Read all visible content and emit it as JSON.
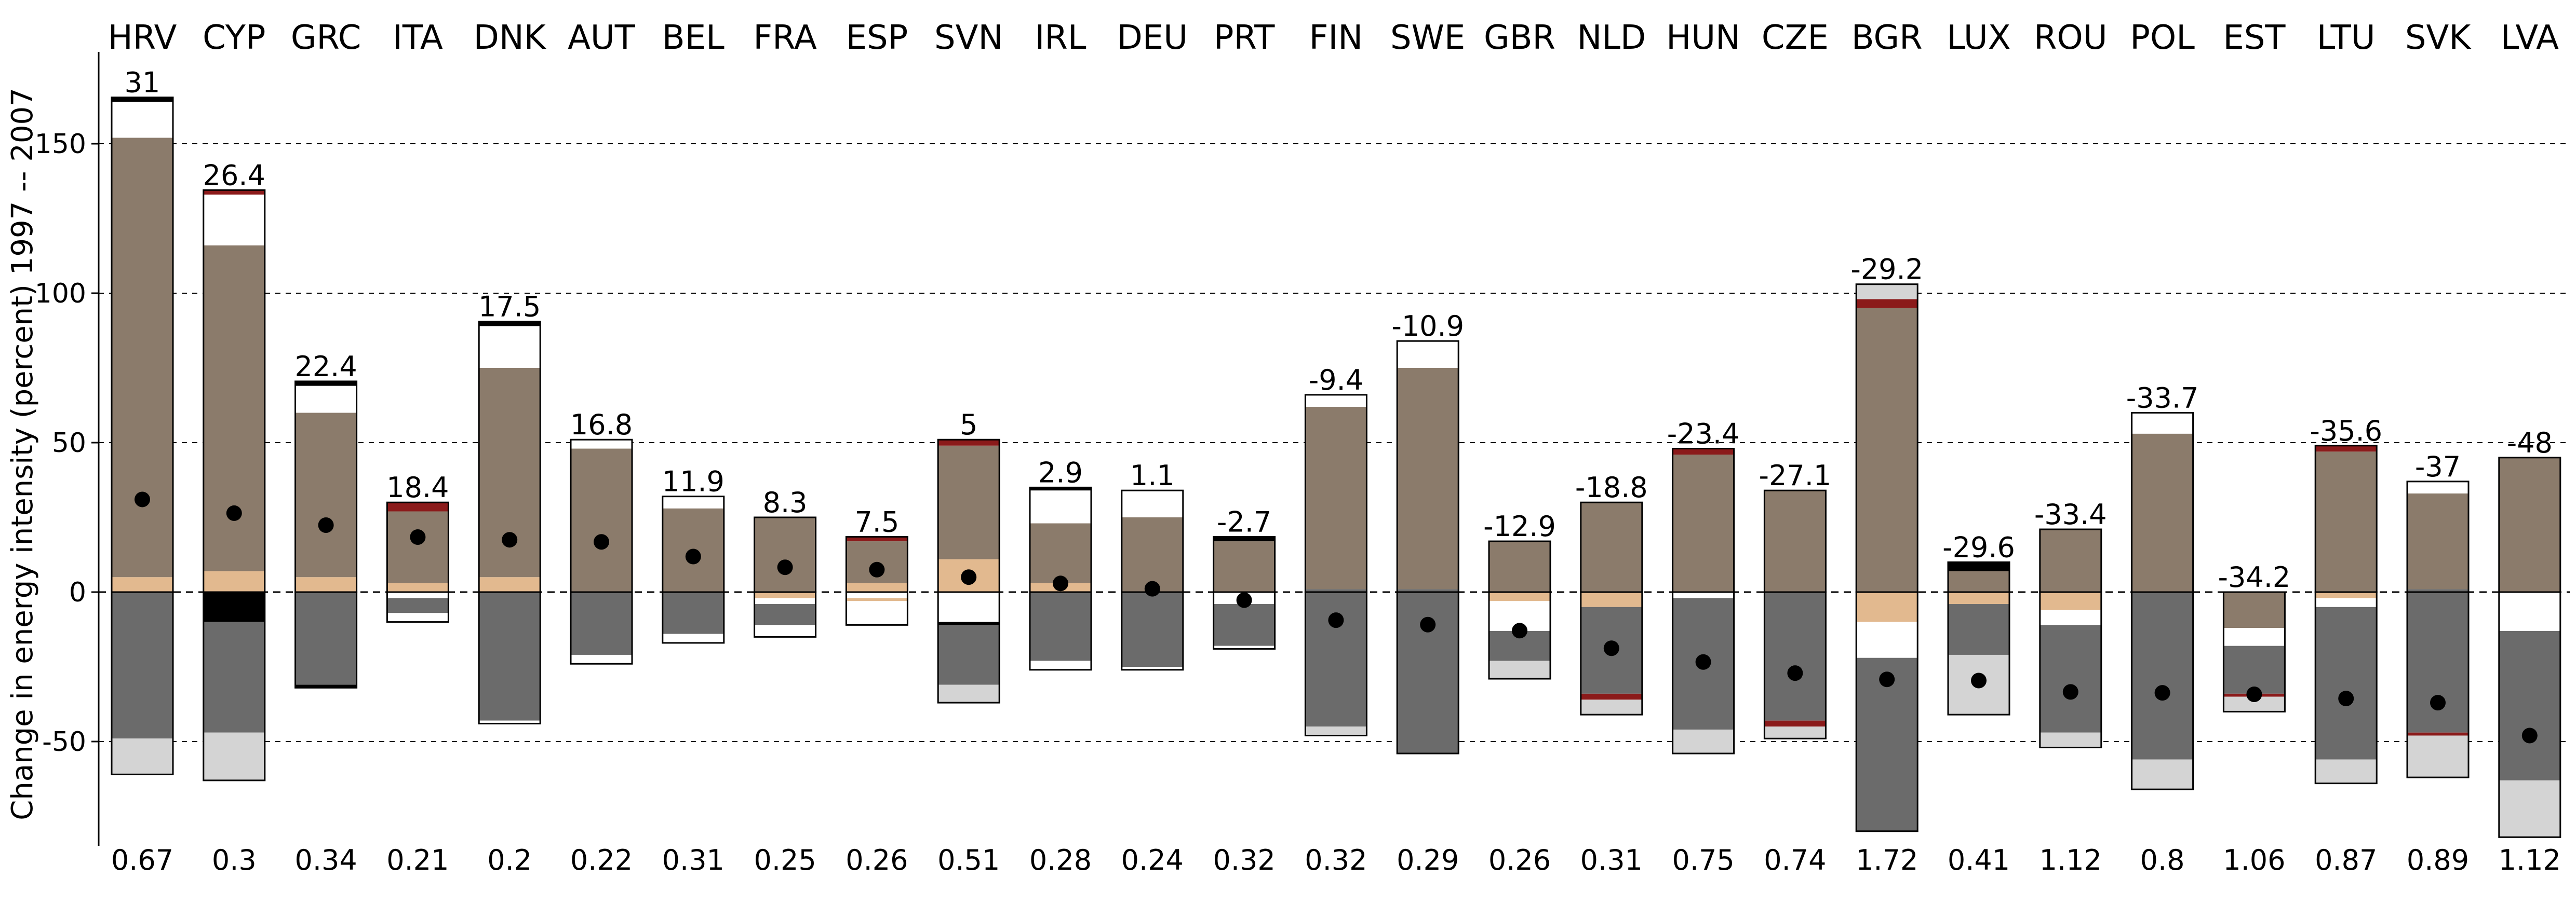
{
  "chart_data": {
    "type": "bar",
    "subtype": "stacked-decomposition-with-total-marker",
    "ylabel": "Change in energy intensity (percent) 1997 -- 2007",
    "ylim": [
      -82,
      168
    ],
    "yticks": [
      -50,
      0,
      50,
      100,
      150
    ],
    "grid": true,
    "colors": {
      "taupe": "#8b7b6b",
      "tan": "#e2b98f",
      "dark_red": "#8b1a1a",
      "black": "#000000",
      "white": "#ffffff",
      "dark_gray": "#6b6b6b",
      "light_gray": "#d4d4d4"
    },
    "countries": [
      {
        "code": "HRV",
        "total": 31,
        "total_label": "31",
        "intensity": "0.67",
        "pos": [
          {
            "c": "tan",
            "h": 5
          },
          {
            "c": "taupe",
            "h": 147
          },
          {
            "c": "white",
            "h": 12
          },
          {
            "c": "black",
            "h": 1.5
          }
        ],
        "neg": [
          {
            "c": "dark_gray",
            "h": 49
          },
          {
            "c": "light_gray",
            "h": 12
          }
        ]
      },
      {
        "code": "CYP",
        "total": 26.4,
        "total_label": "26.4",
        "intensity": "0.3",
        "pos": [
          {
            "c": "tan",
            "h": 7
          },
          {
            "c": "taupe",
            "h": 109
          },
          {
            "c": "white",
            "h": 17
          },
          {
            "c": "dark_red",
            "h": 1.5
          }
        ],
        "neg": [
          {
            "c": "black",
            "h": 10
          },
          {
            "c": "dark_gray",
            "h": 37
          },
          {
            "c": "light_gray",
            "h": 16
          }
        ]
      },
      {
        "code": "GRC",
        "total": 22.4,
        "total_label": "22.4",
        "intensity": "0.34",
        "pos": [
          {
            "c": "tan",
            "h": 5
          },
          {
            "c": "taupe",
            "h": 55
          },
          {
            "c": "white",
            "h": 9
          },
          {
            "c": "black",
            "h": 1.5
          }
        ],
        "neg": [
          {
            "c": "dark_gray",
            "h": 31
          },
          {
            "c": "black",
            "h": 1
          }
        ]
      },
      {
        "code": "ITA",
        "total": 18.4,
        "total_label": "18.4",
        "intensity": "0.21",
        "pos": [
          {
            "c": "tan",
            "h": 3
          },
          {
            "c": "taupe",
            "h": 24
          },
          {
            "c": "dark_red",
            "h": 3
          }
        ],
        "neg": [
          {
            "c": "white",
            "h": 2
          },
          {
            "c": "dark_gray",
            "h": 5
          },
          {
            "c": "white",
            "h": 3
          }
        ]
      },
      {
        "code": "DNK",
        "total": 17.5,
        "total_label": "17.5",
        "intensity": "0.2",
        "pos": [
          {
            "c": "tan",
            "h": 5
          },
          {
            "c": "taupe",
            "h": 70
          },
          {
            "c": "white",
            "h": 14
          },
          {
            "c": "black",
            "h": 1.5
          }
        ],
        "neg": [
          {
            "c": "dark_gray",
            "h": 43
          },
          {
            "c": "white",
            "h": 1
          }
        ]
      },
      {
        "code": "AUT",
        "total": 16.8,
        "total_label": "16.8",
        "intensity": "0.22",
        "pos": [
          {
            "c": "taupe",
            "h": 48
          },
          {
            "c": "white",
            "h": 3
          }
        ],
        "neg": [
          {
            "c": "dark_gray",
            "h": 21
          },
          {
            "c": "white",
            "h": 3
          }
        ]
      },
      {
        "code": "BEL",
        "total": 11.9,
        "total_label": "11.9",
        "intensity": "0.31",
        "pos": [
          {
            "c": "taupe",
            "h": 28
          },
          {
            "c": "white",
            "h": 4
          }
        ],
        "neg": [
          {
            "c": "dark_gray",
            "h": 14
          },
          {
            "c": "white",
            "h": 3
          }
        ]
      },
      {
        "code": "FRA",
        "total": 8.3,
        "total_label": "8.3",
        "intensity": "0.25",
        "pos": [
          {
            "c": "taupe",
            "h": 25
          }
        ],
        "neg": [
          {
            "c": "tan",
            "h": 2
          },
          {
            "c": "white",
            "h": 2
          },
          {
            "c": "dark_gray",
            "h": 7
          },
          {
            "c": "white",
            "h": 4
          }
        ]
      },
      {
        "code": "ESP",
        "total": 7.5,
        "total_label": "7.5",
        "intensity": "0.26",
        "pos": [
          {
            "c": "tan",
            "h": 3
          },
          {
            "c": "taupe",
            "h": 14
          },
          {
            "c": "dark_red",
            "h": 1.5
          }
        ],
        "neg": [
          {
            "c": "white",
            "h": 2
          },
          {
            "c": "tan",
            "h": 1
          },
          {
            "c": "white",
            "h": 6
          },
          {
            "c": "white",
            "h": 2
          }
        ]
      },
      {
        "code": "SVN",
        "total": 5,
        "total_label": "5",
        "intensity": "0.51",
        "pos": [
          {
            "c": "tan",
            "h": 11
          },
          {
            "c": "taupe",
            "h": 38
          },
          {
            "c": "dark_red",
            "h": 2
          }
        ],
        "neg": [
          {
            "c": "white",
            "h": 10
          },
          {
            "c": "black",
            "h": 1
          },
          {
            "c": "dark_gray",
            "h": 20
          },
          {
            "c": "light_gray",
            "h": 6
          }
        ]
      },
      {
        "code": "IRL",
        "total": 2.9,
        "total_label": "2.9",
        "intensity": "0.28",
        "pos": [
          {
            "c": "tan",
            "h": 3
          },
          {
            "c": "taupe",
            "h": 20
          },
          {
            "c": "white",
            "h": 11
          },
          {
            "c": "black",
            "h": 1
          }
        ],
        "neg": [
          {
            "c": "dark_gray",
            "h": 23
          },
          {
            "c": "white",
            "h": 3
          }
        ]
      },
      {
        "code": "DEU",
        "total": 1.1,
        "total_label": "1.1",
        "intensity": "0.24",
        "pos": [
          {
            "c": "taupe",
            "h": 25
          },
          {
            "c": "white",
            "h": 9
          }
        ],
        "neg": [
          {
            "c": "dark_gray",
            "h": 25
          },
          {
            "c": "white",
            "h": 1
          }
        ]
      },
      {
        "code": "PRT",
        "total": -2.7,
        "total_label": "-2.7",
        "intensity": "0.32",
        "pos": [
          {
            "c": "taupe",
            "h": 17
          },
          {
            "c": "black",
            "h": 1.5
          }
        ],
        "neg": [
          {
            "c": "white",
            "h": 4
          },
          {
            "c": "dark_gray",
            "h": 14
          },
          {
            "c": "white",
            "h": 1
          }
        ]
      },
      {
        "code": "FIN",
        "total": -9.4,
        "total_label": "-9.4",
        "intensity": "0.32",
        "pos": [
          {
            "c": "dark_gray",
            "h": 1
          },
          {
            "c": "taupe",
            "h": 61
          },
          {
            "c": "white",
            "h": 4
          }
        ],
        "neg": [
          {
            "c": "dark_gray",
            "h": 45
          },
          {
            "c": "light_gray",
            "h": 3
          }
        ]
      },
      {
        "code": "SWE",
        "total": -10.9,
        "total_label": "-10.9",
        "intensity": "0.29",
        "pos": [
          {
            "c": "dark_gray",
            "h": 1
          },
          {
            "c": "taupe",
            "h": 74
          },
          {
            "c": "white",
            "h": 9
          }
        ],
        "neg": [
          {
            "c": "dark_gray",
            "h": 54
          }
        ]
      },
      {
        "code": "GBR",
        "total": -12.9,
        "total_label": "-12.9",
        "intensity": "0.26",
        "pos": [
          {
            "c": "taupe",
            "h": 17
          }
        ],
        "neg": [
          {
            "c": "tan",
            "h": 3
          },
          {
            "c": "white",
            "h": 10
          },
          {
            "c": "dark_gray",
            "h": 10
          },
          {
            "c": "light_gray",
            "h": 6
          }
        ]
      },
      {
        "code": "NLD",
        "total": -18.8,
        "total_label": "-18.8",
        "intensity": "0.31",
        "pos": [
          {
            "c": "taupe",
            "h": 30
          }
        ],
        "neg": [
          {
            "c": "tan",
            "h": 5
          },
          {
            "c": "dark_gray",
            "h": 29
          },
          {
            "c": "dark_red",
            "h": 2
          },
          {
            "c": "light_gray",
            "h": 5
          }
        ]
      },
      {
        "code": "HUN",
        "total": -23.4,
        "total_label": "-23.4",
        "intensity": "0.75",
        "pos": [
          {
            "c": "taupe",
            "h": 46
          },
          {
            "c": "dark_red",
            "h": 2
          }
        ],
        "neg": [
          {
            "c": "white",
            "h": 2
          },
          {
            "c": "dark_gray",
            "h": 44
          },
          {
            "c": "light_gray",
            "h": 8
          }
        ]
      },
      {
        "code": "CZE",
        "total": -27.1,
        "total_label": "-27.1",
        "intensity": "0.74",
        "pos": [
          {
            "c": "taupe",
            "h": 34
          }
        ],
        "neg": [
          {
            "c": "dark_gray",
            "h": 43
          },
          {
            "c": "dark_red",
            "h": 2
          },
          {
            "c": "light_gray",
            "h": 4
          }
        ]
      },
      {
        "code": "BGR",
        "total": -29.2,
        "total_label": "-29.2",
        "intensity": "1.72",
        "pos": [
          {
            "c": "taupe",
            "h": 95
          },
          {
            "c": "dark_red",
            "h": 3
          },
          {
            "c": "light_gray",
            "h": 5
          }
        ],
        "neg": [
          {
            "c": "tan",
            "h": 10
          },
          {
            "c": "white",
            "h": 12
          },
          {
            "c": "dark_gray",
            "h": 58
          }
        ]
      },
      {
        "code": "LUX",
        "total": -29.6,
        "total_label": "-29.6",
        "intensity": "0.41",
        "pos": [
          {
            "c": "taupe",
            "h": 7
          },
          {
            "c": "black",
            "h": 3
          }
        ],
        "neg": [
          {
            "c": "tan",
            "h": 4
          },
          {
            "c": "dark_gray",
            "h": 17
          },
          {
            "c": "light_gray",
            "h": 20
          }
        ]
      },
      {
        "code": "ROU",
        "total": -33.4,
        "total_label": "-33.4",
        "intensity": "1.12",
        "pos": [
          {
            "c": "taupe",
            "h": 21
          }
        ],
        "neg": [
          {
            "c": "tan",
            "h": 6
          },
          {
            "c": "white",
            "h": 5
          },
          {
            "c": "dark_gray",
            "h": 36
          },
          {
            "c": "light_gray",
            "h": 5
          }
        ]
      },
      {
        "code": "POL",
        "total": -33.7,
        "total_label": "-33.7",
        "intensity": "0.8",
        "pos": [
          {
            "c": "taupe",
            "h": 53
          },
          {
            "c": "white",
            "h": 7
          }
        ],
        "neg": [
          {
            "c": "dark_gray",
            "h": 56
          },
          {
            "c": "light_gray",
            "h": 10
          }
        ]
      },
      {
        "code": "EST",
        "total": -34.2,
        "total_label": "-34.2",
        "intensity": "1.06",
        "pos": [],
        "neg": [
          {
            "c": "taupe",
            "h": 12
          },
          {
            "c": "white",
            "h": 6
          },
          {
            "c": "dark_gray",
            "h": 16
          },
          {
            "c": "dark_red",
            "h": 1
          },
          {
            "c": "light_gray",
            "h": 5
          }
        ]
      },
      {
        "code": "LTU",
        "total": -35.6,
        "total_label": "-35.6",
        "intensity": "0.87",
        "pos": [
          {
            "c": "taupe",
            "h": 47
          },
          {
            "c": "dark_red",
            "h": 2
          }
        ],
        "neg": [
          {
            "c": "tan",
            "h": 2
          },
          {
            "c": "white",
            "h": 3
          },
          {
            "c": "dark_gray",
            "h": 51
          },
          {
            "c": "light_gray",
            "h": 8
          }
        ]
      },
      {
        "code": "SVK",
        "total": -37,
        "total_label": "-37",
        "intensity": "0.89",
        "pos": [
          {
            "c": "dark_gray",
            "h": 1
          },
          {
            "c": "taupe",
            "h": 32
          },
          {
            "c": "white",
            "h": 4
          }
        ],
        "neg": [
          {
            "c": "dark_gray",
            "h": 47
          },
          {
            "c": "dark_red",
            "h": 1
          },
          {
            "c": "light_gray",
            "h": 14
          }
        ]
      },
      {
        "code": "LVA",
        "total": -48,
        "total_label": "-48",
        "intensity": "1.12",
        "pos": [
          {
            "c": "taupe",
            "h": 45
          }
        ],
        "neg": [
          {
            "c": "white",
            "h": 13
          },
          {
            "c": "dark_gray",
            "h": 50
          },
          {
            "c": "light_gray",
            "h": 19
          }
        ]
      }
    ]
  }
}
